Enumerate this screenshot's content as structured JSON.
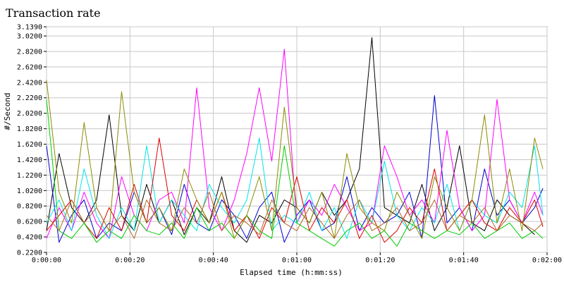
{
  "chart_data": {
    "type": "line",
    "title": "Transaction rate",
    "xlabel": "Elapsed time (h:mm:ss)",
    "ylabel": "#/Second",
    "xlim_seconds": [
      0,
      120
    ],
    "ylim": [
      0.22,
      3.139
    ],
    "x_ticks": [
      {
        "v": 0,
        "label": "0:00:00"
      },
      {
        "v": 20,
        "label": "0:00:20"
      },
      {
        "v": 40,
        "label": "0:00:40"
      },
      {
        "v": 60,
        "label": "0:01:00"
      },
      {
        "v": 80,
        "label": "0:01:20"
      },
      {
        "v": 100,
        "label": "0:01:40"
      },
      {
        "v": 120,
        "label": "0:02:00"
      }
    ],
    "y_ticks": [
      {
        "v": 0.22,
        "label": "0.2200"
      },
      {
        "v": 0.42,
        "label": "0.4200"
      },
      {
        "v": 0.62,
        "label": "0.6200"
      },
      {
        "v": 0.82,
        "label": "0.8200"
      },
      {
        "v": 1.02,
        "label": "1.0200"
      },
      {
        "v": 1.22,
        "label": "1.2200"
      },
      {
        "v": 1.42,
        "label": "1.4200"
      },
      {
        "v": 1.62,
        "label": "1.6200"
      },
      {
        "v": 1.82,
        "label": "1.8200"
      },
      {
        "v": 2.02,
        "label": "2.0200"
      },
      {
        "v": 2.22,
        "label": "2.2200"
      },
      {
        "v": 2.42,
        "label": "2.4200"
      },
      {
        "v": 2.62,
        "label": "2.6200"
      },
      {
        "v": 2.82,
        "label": "2.8200"
      },
      {
        "v": 3.02,
        "label": "3.0200"
      },
      {
        "v": 3.139,
        "label": "3.1390"
      }
    ],
    "grid": true,
    "series": [
      {
        "color": "#000000",
        "x": [
          0,
          3,
          6,
          9,
          12,
          15,
          18,
          21,
          24,
          27,
          30,
          33,
          36,
          39,
          42,
          45,
          48,
          51,
          54,
          57,
          60,
          63,
          66,
          69,
          72,
          75,
          78,
          81,
          84,
          87,
          90,
          93,
          96,
          99,
          102,
          105,
          108,
          111,
          114,
          117
        ],
        "y": [
          0.5,
          1.5,
          0.8,
          0.6,
          0.9,
          2.0,
          0.7,
          0.5,
          1.1,
          0.6,
          0.9,
          0.45,
          0.8,
          0.6,
          1.2,
          0.5,
          0.35,
          0.7,
          0.6,
          0.9,
          0.8,
          0.6,
          1.0,
          0.7,
          0.9,
          1.3,
          3.0,
          0.8,
          0.7,
          0.6,
          1.1,
          0.5,
          0.8,
          1.6,
          0.6,
          0.5,
          0.9,
          0.7,
          0.6,
          0.45
        ]
      },
      {
        "color": "#0000cc",
        "x": [
          0,
          3,
          6,
          9,
          12,
          15,
          18,
          21,
          24,
          27,
          30,
          33,
          36,
          39,
          42,
          45,
          48,
          51,
          54,
          57,
          60,
          63,
          66,
          69,
          72,
          75,
          78,
          81,
          84,
          87,
          90,
          93,
          96,
          99,
          102,
          105,
          108,
          111,
          114,
          117,
          119
        ],
        "y": [
          1.6,
          0.35,
          0.7,
          0.9,
          0.4,
          0.6,
          0.5,
          1.0,
          0.6,
          0.8,
          0.45,
          1.1,
          0.6,
          0.5,
          0.9,
          0.7,
          0.4,
          0.8,
          1.0,
          0.35,
          0.7,
          0.9,
          0.5,
          0.6,
          1.2,
          0.5,
          0.8,
          0.6,
          0.7,
          1.0,
          0.4,
          2.25,
          0.6,
          0.8,
          0.5,
          1.3,
          0.7,
          0.9,
          0.6,
          0.8,
          1.05
        ]
      },
      {
        "color": "#ff00ff",
        "x": [
          0,
          3,
          6,
          9,
          12,
          15,
          18,
          21,
          24,
          27,
          30,
          33,
          36,
          39,
          42,
          45,
          48,
          51,
          54,
          57,
          60,
          63,
          66,
          69,
          72,
          75,
          78,
          81,
          84,
          87,
          90,
          93,
          96,
          99,
          102,
          105,
          108,
          111,
          114,
          117,
          119
        ],
        "y": [
          0.4,
          0.8,
          0.5,
          1.0,
          0.6,
          0.4,
          1.2,
          0.7,
          0.5,
          0.9,
          1.0,
          0.6,
          2.35,
          0.8,
          0.5,
          0.9,
          1.5,
          2.35,
          1.4,
          2.85,
          0.6,
          0.9,
          0.7,
          1.1,
          0.8,
          0.5,
          0.6,
          1.6,
          1.2,
          0.7,
          0.9,
          0.6,
          1.8,
          0.8,
          0.5,
          0.7,
          2.2,
          0.9,
          0.6,
          1.0,
          0.7
        ]
      },
      {
        "color": "#00e5e5",
        "x": [
          0,
          3,
          6,
          9,
          12,
          15,
          18,
          21,
          24,
          27,
          30,
          33,
          36,
          39,
          42,
          45,
          48,
          51,
          54,
          57,
          60,
          63,
          66,
          69,
          72,
          75,
          78,
          81,
          84,
          87,
          90,
          93,
          96,
          99,
          102,
          105,
          108,
          111,
          114,
          117,
          119
        ],
        "y": [
          0.6,
          0.9,
          0.5,
          1.3,
          0.7,
          0.4,
          0.8,
          0.5,
          1.6,
          0.6,
          0.9,
          0.7,
          0.5,
          1.1,
          0.8,
          0.6,
          0.9,
          1.7,
          0.5,
          0.7,
          0.6,
          1.0,
          0.5,
          0.8,
          0.4,
          0.9,
          0.6,
          1.4,
          0.7,
          0.5,
          0.8,
          0.6,
          1.1,
          0.5,
          0.9,
          0.7,
          0.6,
          1.0,
          0.8,
          1.6,
          0.7
        ]
      },
      {
        "color": "#dd0000",
        "x": [
          0,
          3,
          6,
          9,
          12,
          15,
          18,
          21,
          24,
          27,
          30,
          33,
          36,
          39,
          42,
          45,
          48,
          51,
          54,
          57,
          60,
          63,
          66,
          69,
          72,
          75,
          78,
          81,
          84,
          87,
          90,
          93,
          96,
          99,
          102,
          105,
          108,
          111,
          114,
          117,
          119
        ],
        "y": [
          0.5,
          0.7,
          0.9,
          0.6,
          0.4,
          0.8,
          0.5,
          1.1,
          0.6,
          1.7,
          0.7,
          0.5,
          0.9,
          0.6,
          1.0,
          0.5,
          0.7,
          0.4,
          0.8,
          0.6,
          1.2,
          0.5,
          0.8,
          0.6,
          0.9,
          0.4,
          0.7,
          0.35,
          0.5,
          0.8,
          0.6,
          1.3,
          0.5,
          0.7,
          0.9,
          0.6,
          0.5,
          0.8,
          0.6,
          0.9,
          0.55
        ]
      },
      {
        "color": "#00cc00",
        "x": [
          0,
          3,
          6,
          9,
          12,
          15,
          18,
          21,
          24,
          27,
          30,
          33,
          36,
          39,
          42,
          45,
          48,
          51,
          54,
          57,
          60,
          63,
          66,
          69,
          72,
          75,
          78,
          81,
          84,
          87,
          90,
          93,
          96,
          99,
          102,
          105,
          108,
          111,
          114,
          117,
          119
        ],
        "y": [
          2.2,
          0.5,
          0.4,
          0.6,
          0.35,
          0.5,
          0.4,
          0.7,
          0.5,
          0.45,
          0.6,
          0.4,
          0.8,
          0.5,
          0.6,
          0.4,
          0.7,
          0.5,
          0.4,
          1.6,
          0.6,
          0.5,
          0.4,
          0.3,
          0.5,
          0.6,
          0.4,
          0.5,
          0.3,
          0.6,
          0.5,
          0.4,
          0.5,
          0.45,
          0.6,
          0.4,
          0.5,
          0.6,
          0.4,
          0.5,
          0.4
        ]
      },
      {
        "color": "#8b8b00",
        "x": [
          0,
          3,
          6,
          9,
          12,
          15,
          18,
          21,
          24,
          27,
          30,
          33,
          36,
          39,
          42,
          45,
          48,
          51,
          54,
          57,
          60,
          63,
          66,
          69,
          72,
          75,
          78,
          81,
          84,
          87,
          90,
          93,
          96,
          99,
          102,
          105,
          108,
          111,
          114,
          117,
          119
        ],
        "y": [
          2.45,
          1.0,
          0.6,
          1.9,
          0.8,
          0.5,
          2.3,
          1.0,
          0.6,
          0.8,
          0.5,
          1.3,
          0.9,
          0.6,
          1.0,
          0.4,
          0.7,
          1.2,
          0.5,
          2.1,
          0.8,
          0.6,
          1.0,
          0.4,
          1.5,
          0.8,
          0.6,
          0.5,
          1.0,
          0.7,
          0.4,
          1.2,
          0.8,
          0.5,
          0.9,
          2.0,
          0.6,
          1.3,
          0.5,
          1.7,
          1.3
        ]
      },
      {
        "color": "#b06a2a",
        "x": [
          0,
          3,
          6,
          9,
          12,
          15,
          18,
          21,
          24,
          27,
          30,
          33,
          36,
          39,
          42,
          45,
          48,
          51,
          54,
          57,
          60,
          63,
          66,
          69,
          72,
          75,
          78,
          81,
          84,
          87,
          90,
          93,
          96,
          99,
          102,
          105,
          108,
          111,
          114,
          117,
          119
        ],
        "y": [
          0.7,
          0.5,
          0.9,
          0.6,
          0.8,
          0.5,
          0.7,
          0.4,
          0.9,
          0.6,
          0.5,
          0.8,
          0.6,
          1.0,
          0.5,
          0.7,
          0.6,
          0.45,
          0.9,
          0.6,
          0.5,
          0.8,
          0.6,
          0.4,
          0.7,
          0.9,
          0.5,
          0.6,
          0.8,
          0.5,
          0.6,
          0.9,
          0.5,
          0.7,
          0.6,
          0.8,
          0.5,
          0.7,
          0.6,
          0.5,
          0.6
        ]
      }
    ]
  }
}
